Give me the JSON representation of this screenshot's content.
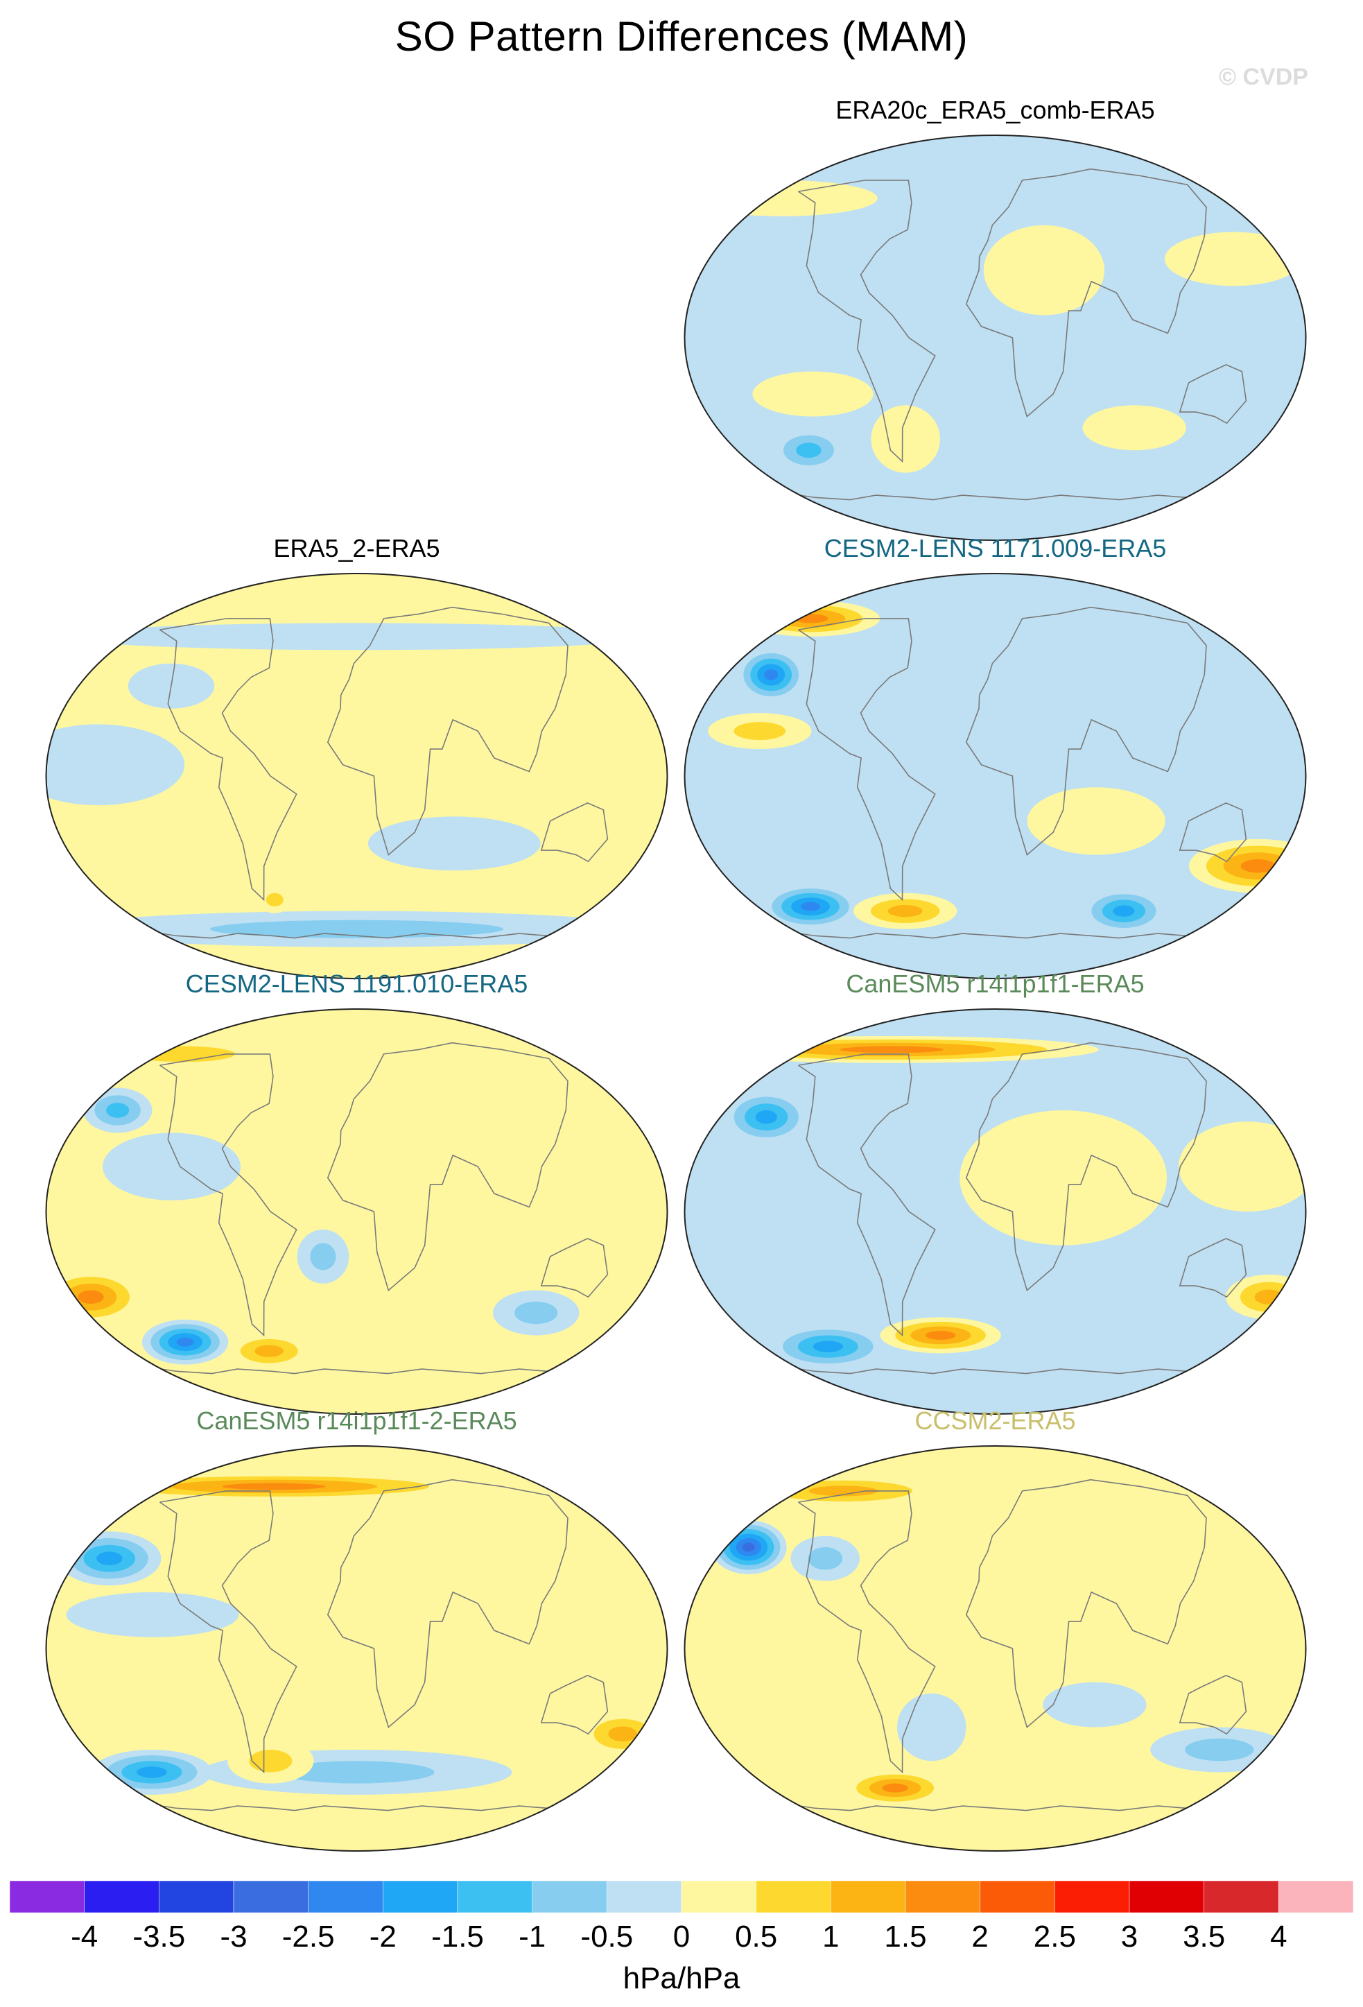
{
  "title": "SO Pattern Differences (MAM)",
  "watermark": "© CVDP",
  "panels": [
    {
      "title": "ERA20c_ERA5_comb-ERA5",
      "title_color": "#000000",
      "base": "#bfe0f2",
      "blobs": [
        {
          "lon": -170,
          "lat": 62,
          "rx": 55,
          "ry": 8,
          "level": 0.4
        },
        {
          "lon": 150,
          "lat": 35,
          "rx": 40,
          "ry": 12,
          "level": 0.3
        },
        {
          "lon": 30,
          "lat": 30,
          "rx": 35,
          "ry": 20,
          "level": 0.3
        },
        {
          "lon": -130,
          "lat": 40,
          "rx": 22,
          "ry": 10,
          "level": -0.4
        },
        {
          "lon": -110,
          "lat": -25,
          "rx": 35,
          "ry": 10,
          "level": 0.3
        },
        {
          "lon": -130,
          "lat": -50,
          "rx": 22,
          "ry": 10,
          "level": -1.3
        },
        {
          "lon": 90,
          "lat": -40,
          "rx": 30,
          "ry": 10,
          "level": 0.3
        },
        {
          "lon": -60,
          "lat": -45,
          "rx": 20,
          "ry": 15,
          "level": 0.3
        }
      ]
    },
    {
      "title": "ERA5_2-ERA5",
      "title_color": "#000000",
      "base": "#fef7a0",
      "blobs": [
        {
          "lon": 0,
          "lat": 62,
          "rx": 170,
          "ry": 6,
          "level": -0.3
        },
        {
          "lon": -150,
          "lat": 5,
          "rx": 50,
          "ry": 18,
          "level": -0.3
        },
        {
          "lon": 60,
          "lat": -30,
          "rx": 50,
          "ry": 12,
          "level": -0.3
        },
        {
          "lon": 0,
          "lat": -68,
          "rx": 170,
          "ry": 8,
          "level": -0.6
        },
        {
          "lon": -120,
          "lat": 40,
          "rx": 25,
          "ry": 10,
          "level": -0.3
        },
        {
          "lon": -60,
          "lat": -55,
          "rx": 10,
          "ry": 6,
          "level": 0.8
        }
      ]
    },
    {
      "title": "CESM2-LENS 1171.009-ERA5",
      "title_color": "#146782",
      "base": "#bfe0f2",
      "blobs": [
        {
          "lon": -170,
          "lat": 70,
          "rx": 40,
          "ry": 8,
          "level": 1.6
        },
        {
          "lon": -150,
          "lat": 45,
          "rx": 20,
          "ry": 12,
          "level": -2.2
        },
        {
          "lon": -140,
          "lat": 20,
          "rx": 30,
          "ry": 8,
          "level": 0.6
        },
        {
          "lon": 170,
          "lat": -40,
          "rx": 40,
          "ry": 12,
          "level": 1.8
        },
        {
          "lon": -140,
          "lat": -58,
          "rx": 28,
          "ry": 10,
          "level": -2.3
        },
        {
          "lon": 100,
          "lat": -60,
          "rx": 25,
          "ry": 10,
          "level": -1.6
        },
        {
          "lon": -70,
          "lat": -60,
          "rx": 30,
          "ry": 8,
          "level": 1.1
        },
        {
          "lon": 60,
          "lat": -20,
          "rx": 40,
          "ry": 15,
          "level": 0.3
        }
      ]
    },
    {
      "title": "CESM2-LENS 1191.010-ERA5",
      "title_color": "#146782",
      "base": "#fef7a0",
      "blobs": [
        {
          "lon": -160,
          "lat": 70,
          "rx": 60,
          "ry": 7,
          "level": 0.9
        },
        {
          "lon": -160,
          "lat": 45,
          "rx": 20,
          "ry": 10,
          "level": -1.2
        },
        {
          "lon": -110,
          "lat": 20,
          "rx": 40,
          "ry": 15,
          "level": -0.4
        },
        {
          "lon": -170,
          "lat": -38,
          "rx": 30,
          "ry": 12,
          "level": 2.0
        },
        {
          "lon": -130,
          "lat": -58,
          "rx": 25,
          "ry": 10,
          "level": -2.4
        },
        {
          "lon": -70,
          "lat": -62,
          "rx": 25,
          "ry": 8,
          "level": 1.5
        },
        {
          "lon": 120,
          "lat": -45,
          "rx": 25,
          "ry": 10,
          "level": -1.0
        },
        {
          "lon": -20,
          "lat": -20,
          "rx": 15,
          "ry": 12,
          "level": -0.9
        }
      ]
    },
    {
      "title": "CanESM5 r14i1p1f1-ERA5",
      "title_color": "#5a8a5a",
      "base": "#bfe0f2",
      "blobs": [
        {
          "lon": -100,
          "lat": 72,
          "rx": 120,
          "ry": 6,
          "level": 2.0
        },
        {
          "lon": -150,
          "lat": 42,
          "rx": 25,
          "ry": 12,
          "level": -2.0
        },
        {
          "lon": 40,
          "lat": 15,
          "rx": 60,
          "ry": 30,
          "level": 0.3
        },
        {
          "lon": 150,
          "lat": 20,
          "rx": 40,
          "ry": 20,
          "level": 0.3
        },
        {
          "lon": 175,
          "lat": -38,
          "rx": 25,
          "ry": 10,
          "level": 1.4
        },
        {
          "lon": -130,
          "lat": -60,
          "rx": 35,
          "ry": 10,
          "level": -1.9
        },
        {
          "lon": -40,
          "lat": -55,
          "rx": 35,
          "ry": 8,
          "level": 1.6
        }
      ]
    },
    {
      "title": "CanESM5 r14i1p1f1-2-ERA5",
      "title_color": "#5a8a5a",
      "base": "#fef7a0",
      "blobs": [
        {
          "lon": -80,
          "lat": 72,
          "rx": 120,
          "ry": 6,
          "level": 1.7
        },
        {
          "lon": -160,
          "lat": 40,
          "rx": 30,
          "ry": 12,
          "level": -2.0
        },
        {
          "lon": -120,
          "lat": 15,
          "rx": 50,
          "ry": 10,
          "level": -0.4
        },
        {
          "lon": 170,
          "lat": -38,
          "rx": 25,
          "ry": 10,
          "level": 1.3
        },
        {
          "lon": -150,
          "lat": -55,
          "rx": 35,
          "ry": 10,
          "level": -1.8
        },
        {
          "lon": 0,
          "lat": -55,
          "rx": 90,
          "ry": 10,
          "level": -0.6
        },
        {
          "lon": -60,
          "lat": -50,
          "rx": 25,
          "ry": 10,
          "level": 0.9
        }
      ]
    },
    {
      "title": "CCSM2-ERA5",
      "title_color": "#c8bf6a",
      "base": "#fef7a0",
      "blobs": [
        {
          "lon": -140,
          "lat": 70,
          "rx": 60,
          "ry": 7,
          "level": 1.1
        },
        {
          "lon": -165,
          "lat": 45,
          "rx": 22,
          "ry": 12,
          "level": -2.6
        },
        {
          "lon": -110,
          "lat": 40,
          "rx": 20,
          "ry": 10,
          "level": -0.9
        },
        {
          "lon": 150,
          "lat": -45,
          "rx": 40,
          "ry": 10,
          "level": -0.8
        },
        {
          "lon": -80,
          "lat": -62,
          "rx": 30,
          "ry": 8,
          "level": 1.6
        },
        {
          "lon": -40,
          "lat": -35,
          "rx": 20,
          "ry": 15,
          "level": -0.5
        },
        {
          "lon": 60,
          "lat": -25,
          "rx": 30,
          "ry": 10,
          "level": -0.4
        }
      ]
    }
  ],
  "colorbar": {
    "levels": [
      -4,
      -3.5,
      -3,
      -2.5,
      -2,
      -1.5,
      -1,
      -0.5,
      0,
      0.5,
      1,
      1.5,
      2,
      2.5,
      3,
      3.5,
      4
    ],
    "tick_labels": [
      "-4",
      "-3.5",
      "-3",
      "-2.5",
      "-2",
      "-1.5",
      "-1",
      "-0.5",
      "0",
      "0.5",
      "1",
      "1.5",
      "2",
      "2.5",
      "3",
      "3.5",
      "4"
    ],
    "colors": [
      "#8a2be2",
      "#2a1ef0",
      "#2244e0",
      "#3a6ee0",
      "#2e88f0",
      "#1fa6f4",
      "#3cc0f2",
      "#86cdf0",
      "#bfe0f2",
      "#fef7a0",
      "#fdd930",
      "#fbb414",
      "#fb8c10",
      "#fb5a06",
      "#fc1e04",
      "#e00004",
      "#d8282c",
      "#fbb4bc"
    ],
    "units": "hPa/hPa"
  }
}
